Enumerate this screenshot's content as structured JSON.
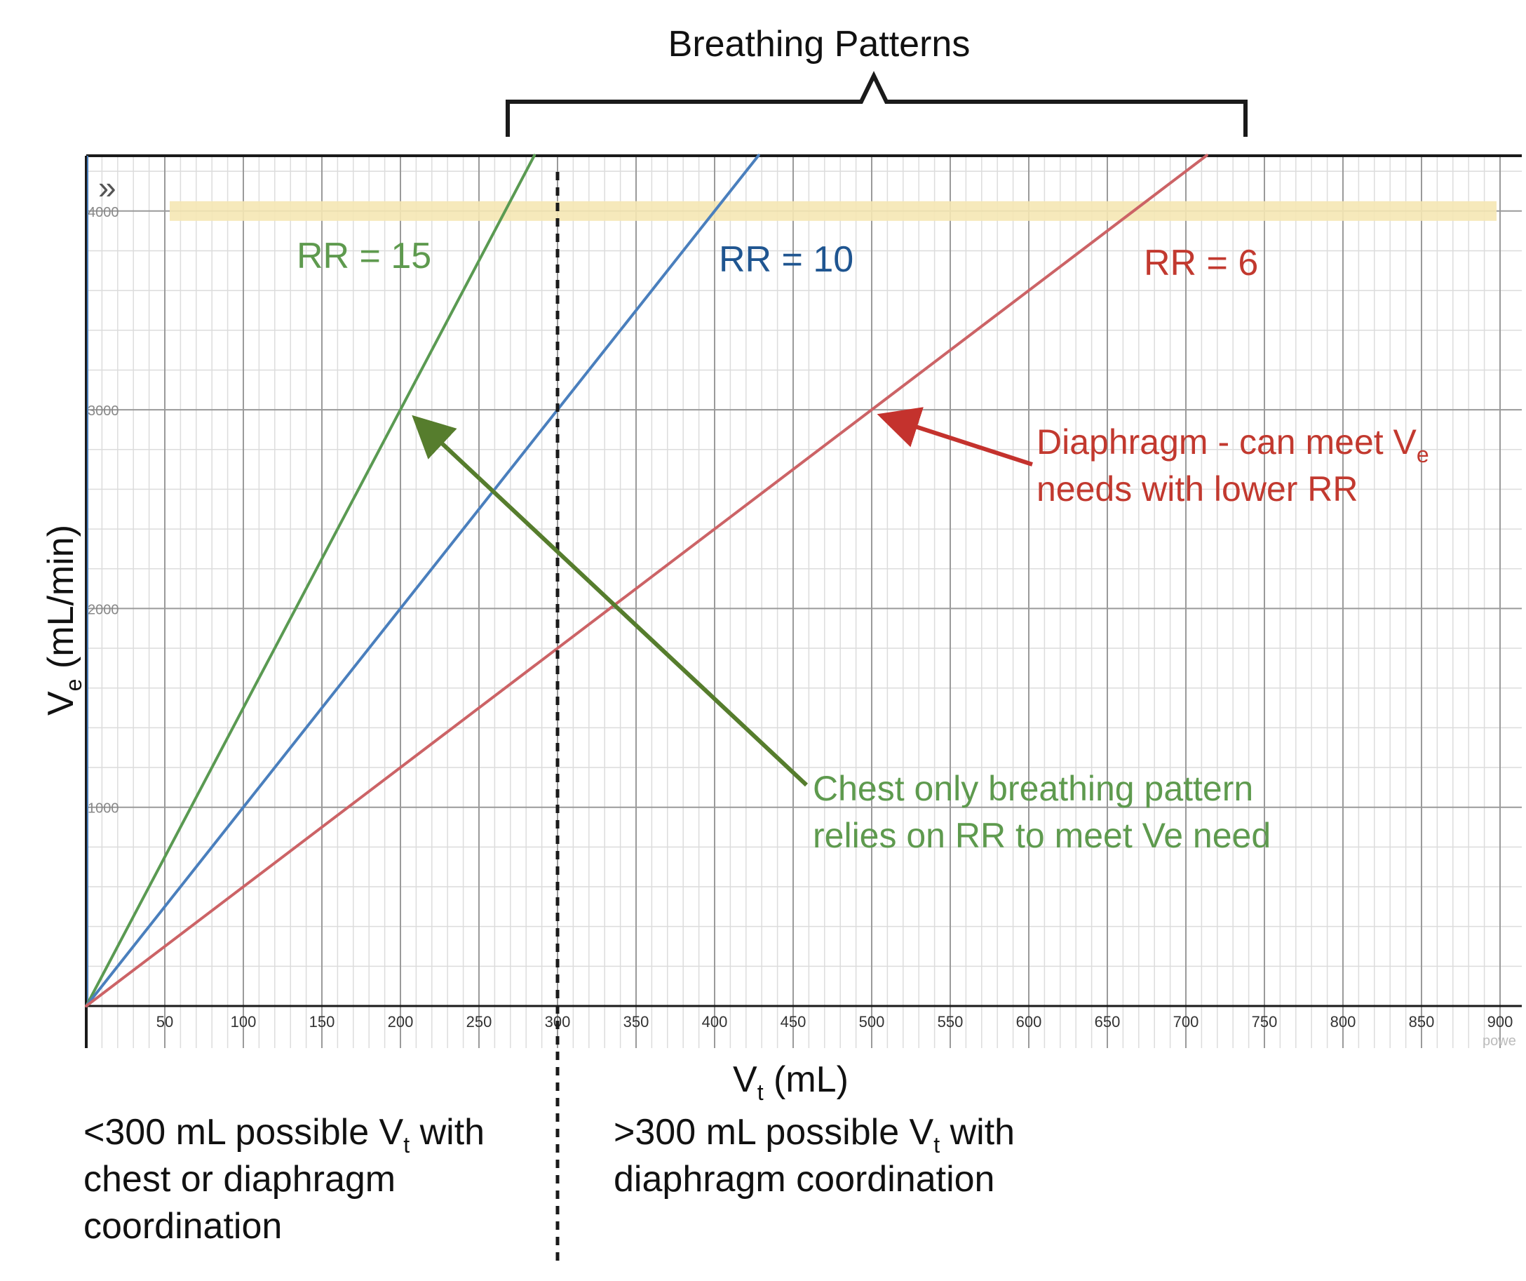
{
  "header": {
    "title": "Breathing Patterns"
  },
  "icons": {
    "expand": "double-chevron-right-icon",
    "expand_glyph": "»"
  },
  "colors": {
    "rr15": "#5a9a52",
    "rr10": "#4a7fbd",
    "rr6": "#cc6366",
    "rr15_text": "#5e9a4e",
    "rr10_text": "#1f5590",
    "rr6_text": "#c2392f",
    "chest_arrow": "#567d2d",
    "diaphragm_arrow": "#c4322d",
    "highlight_band": "#f5e7b4",
    "grid_major": "#9a9a9a",
    "grid_minor": "#dcdcdc",
    "axis": "#1a1a1a"
  },
  "chart_data": {
    "type": "line",
    "xlabel_main": "V",
    "xlabel_sub": "t",
    "xlabel_rest": " (mL)",
    "ylabel_main": "V",
    "ylabel_sub": "e",
    "ylabel_rest": " (mL/min)",
    "xlim": [
      0,
      900
    ],
    "ylim": [
      0,
      4280
    ],
    "grid": true,
    "x_ticks": [
      "50",
      "100",
      "150",
      "200",
      "250",
      "300",
      "350",
      "400",
      "450",
      "500",
      "550",
      "600",
      "650",
      "700",
      "750",
      "800",
      "850",
      "900"
    ],
    "y_ticks": [
      "1000",
      "2000",
      "3000",
      "4000"
    ],
    "series": [
      {
        "name": "RR = 15",
        "slope": 15,
        "x": [
          0,
          285.3
        ],
        "y": [
          0,
          4280
        ]
      },
      {
        "name": "RR = 10",
        "slope": 10,
        "x": [
          0,
          428
        ],
        "y": [
          0,
          4280
        ]
      },
      {
        "name": "RR = 6",
        "slope": 6,
        "x": [
          0,
          713.3
        ],
        "y": [
          0,
          4280
        ]
      }
    ],
    "highlight_y": 4000,
    "threshold_x": 300,
    "annotations": {
      "diaphragm_line1_prefix": "Diaphragm - can meet V",
      "diaphragm_line1_sub": "e",
      "diaphragm_line2": "needs with lower RR",
      "diaphragm_target": {
        "x": 500,
        "y": 3000
      },
      "chest_line1": "Chest only breathing pattern",
      "chest_line2": "relies on RR to meet Ve need",
      "chest_target": {
        "x": 200,
        "y": 3000
      }
    }
  },
  "footer": {
    "left": {
      "line1_prefix": "<300 mL possible V",
      "line1_sub": "t",
      "line1_suffix": " with",
      "line2": "chest or diaphragm",
      "line3": "coordination"
    },
    "right": {
      "line1_prefix": ">300 mL possible V",
      "line1_sub": "t",
      "line1_suffix": " with",
      "line2": "diaphragm coordination"
    }
  },
  "watermark": "powe"
}
